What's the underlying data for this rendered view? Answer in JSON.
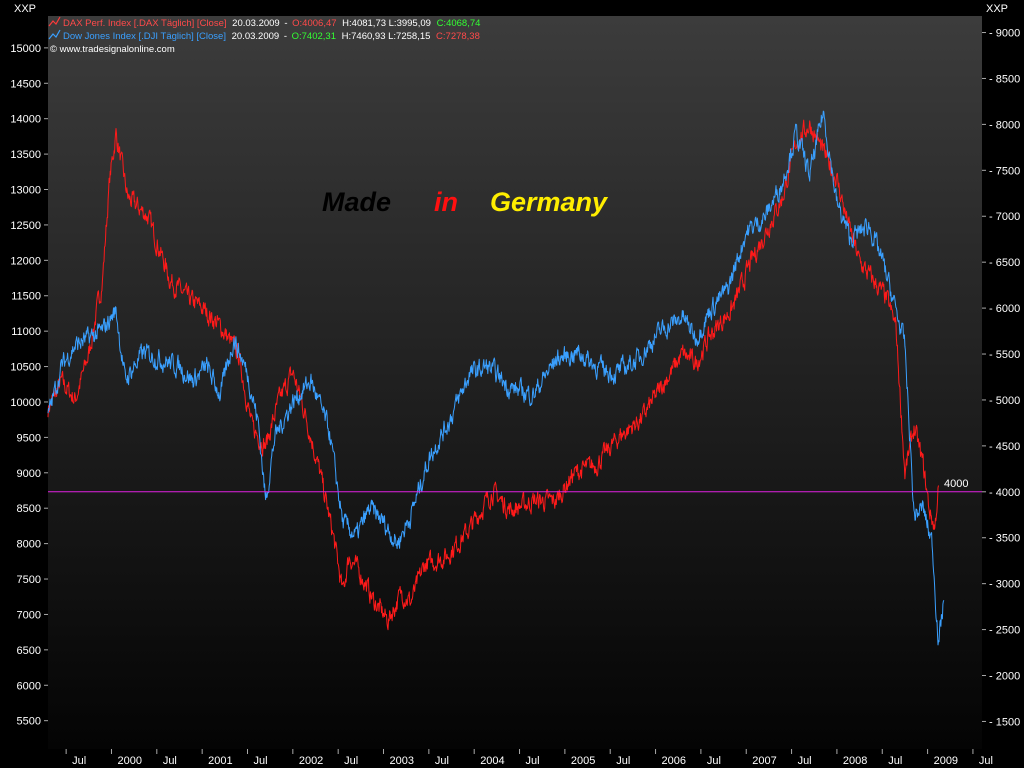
{
  "chart_data": {
    "type": "line",
    "watermark": "© www.tradesignalonline.com",
    "left_axis": {
      "unit_label": "XXP",
      "range": [
        5100,
        15450
      ],
      "ticks": [
        15000,
        14500,
        14000,
        13500,
        13000,
        12500,
        12000,
        11500,
        11000,
        10500,
        10000,
        9500,
        9000,
        8500,
        8000,
        7500,
        7000,
        6500,
        6000,
        5500
      ]
    },
    "right_axis": {
      "unit_label": "XXP",
      "range": [
        1200,
        9180
      ],
      "ticks": [
        9000,
        8500,
        8000,
        7500,
        7000,
        6500,
        6000,
        5500,
        5000,
        4500,
        4000,
        3500,
        3000,
        2500,
        2000,
        1500
      ]
    },
    "x_axis": {
      "range": [
        1999.3,
        2009.6
      ],
      "ticks": [
        {
          "x": 1999.5,
          "label": "Jul"
        },
        {
          "x": 2000.0,
          "label": "2000"
        },
        {
          "x": 2000.5,
          "label": "Jul"
        },
        {
          "x": 2001.0,
          "label": "2001"
        },
        {
          "x": 2001.5,
          "label": "Jul"
        },
        {
          "x": 2002.0,
          "label": "2002"
        },
        {
          "x": 2002.5,
          "label": "Jul"
        },
        {
          "x": 2003.0,
          "label": "2003"
        },
        {
          "x": 2003.5,
          "label": "Jul"
        },
        {
          "x": 2004.0,
          "label": "2004"
        },
        {
          "x": 2004.5,
          "label": "Jul"
        },
        {
          "x": 2005.0,
          "label": "2005"
        },
        {
          "x": 2005.5,
          "label": "Jul"
        },
        {
          "x": 2006.0,
          "label": "2006"
        },
        {
          "x": 2006.5,
          "label": "Jul"
        },
        {
          "x": 2007.0,
          "label": "2007"
        },
        {
          "x": 2007.5,
          "label": "Jul"
        },
        {
          "x": 2008.0,
          "label": "2008"
        },
        {
          "x": 2008.5,
          "label": "Jul"
        },
        {
          "x": 2009.0,
          "label": "2009"
        },
        {
          "x": 2009.5,
          "label": "Jul"
        }
      ]
    },
    "legend": [
      {
        "name": "DAX Perf. Index [.DAX Täglich] [Close]",
        "date": "20.03.2009",
        "open": "O:4006,47",
        "hlc": "H:4081,73 L:3995,09",
        "close": "C:4068,74",
        "color": "#ff1a1a",
        "name_color": "#ff4a4a",
        "open_color": "#ff4a4a",
        "close_color": "#33ff33"
      },
      {
        "name": "Dow Jones Index [.DJI Täglich] [Close]",
        "date": "20.03.2009",
        "open": "O:7402,31",
        "hlc": "H:7460,93 L:7258,15",
        "close": "C:7278,38",
        "color": "#3aa0ff",
        "name_color": "#3aa0ff",
        "open_color": "#33ff33",
        "close_color": "#ff4a4a"
      }
    ],
    "series": [
      {
        "name": "DAX Perf. Index",
        "axis": "right",
        "color": "#ff1a1a",
        "x": [
          1999.3,
          1999.45,
          1999.6,
          1999.75,
          1999.9,
          1999.98,
          2000.05,
          2000.18,
          2000.4,
          2000.65,
          2000.85,
          2001.0,
          2001.2,
          2001.4,
          2001.55,
          2001.7,
          2001.85,
          2002.0,
          2002.15,
          2002.3,
          2002.45,
          2002.55,
          2002.62,
          2002.75,
          2002.9,
          2003.05,
          2003.2,
          2003.3,
          2003.45,
          2003.7,
          2003.95,
          2004.2,
          2004.4,
          2004.65,
          2004.9,
          2005.1,
          2005.35,
          2005.6,
          2005.85,
          2006.1,
          2006.3,
          2006.45,
          2006.6,
          2006.85,
          2007.05,
          2007.25,
          2007.4,
          2007.55,
          2007.7,
          2007.85,
          2008.0,
          2008.1,
          2008.25,
          2008.4,
          2008.55,
          2008.65,
          2008.75,
          2008.85,
          2008.95,
          2009.02,
          2009.08,
          2009.12
        ],
        "y": [
          4900,
          5200,
          5000,
          5500,
          6300,
          7400,
          7900,
          7200,
          7000,
          6300,
          6100,
          6000,
          5800,
          5500,
          4700,
          4500,
          5000,
          5300,
          4800,
          4200,
          3500,
          2900,
          3300,
          3100,
          2800,
          2600,
          2900,
          2800,
          3200,
          3300,
          3600,
          4000,
          3800,
          3900,
          3900,
          4200,
          4300,
          4600,
          4800,
          5200,
          5500,
          5400,
          5700,
          6000,
          6500,
          6900,
          7200,
          7800,
          8000,
          7700,
          7400,
          7000,
          6500,
          6300,
          6100,
          5800,
          4200,
          4700,
          4300,
          3800,
          3600,
          4069
        ]
      },
      {
        "name": "Dow Jones Index",
        "axis": "left",
        "color": "#3aa0ff",
        "x": [
          1999.3,
          1999.45,
          1999.6,
          1999.75,
          1999.9,
          2000.05,
          2000.15,
          2000.35,
          2000.55,
          2000.75,
          2000.9,
          2001.05,
          2001.2,
          2001.35,
          2001.5,
          2001.62,
          2001.7,
          2001.8,
          2002.0,
          2002.2,
          2002.4,
          2002.55,
          2002.7,
          2002.85,
          2003.0,
          2003.15,
          2003.3,
          2003.5,
          2003.75,
          2003.95,
          2004.15,
          2004.4,
          2004.65,
          2004.9,
          2005.15,
          2005.35,
          2005.55,
          2005.8,
          2006.05,
          2006.3,
          2006.45,
          2006.6,
          2006.8,
          2007.0,
          2007.2,
          2007.4,
          2007.55,
          2007.7,
          2007.85,
          2008.0,
          2008.15,
          2008.35,
          2008.5,
          2008.65,
          2008.75,
          2008.85,
          2008.95,
          2009.05,
          2009.12,
          2009.18
        ],
        "y": [
          9800,
          10500,
          10800,
          10900,
          11000,
          11300,
          10300,
          10700,
          10600,
          10500,
          10300,
          10500,
          10100,
          10900,
          10400,
          9700,
          8600,
          9500,
          10000,
          10300,
          9600,
          8300,
          8100,
          8500,
          8300,
          8000,
          8400,
          9200,
          9800,
          10400,
          10500,
          10200,
          10100,
          10600,
          10700,
          10500,
          10400,
          10600,
          11000,
          11200,
          10900,
          11300,
          11600,
          12400,
          12600,
          13100,
          13800,
          13200,
          14100,
          12800,
          12300,
          12500,
          12000,
          11300,
          10800,
          8400,
          8500,
          8000,
          6600,
          7200
        ]
      }
    ],
    "reference_line": {
      "axis": "right",
      "value": 4000,
      "label": "4000",
      "color": "#e020e0"
    },
    "title_words": [
      {
        "text": "Made",
        "color": "#000000"
      },
      {
        "text": "in",
        "color": "#ff1010"
      },
      {
        "text": "Germany",
        "color": "#ffee00"
      }
    ]
  }
}
